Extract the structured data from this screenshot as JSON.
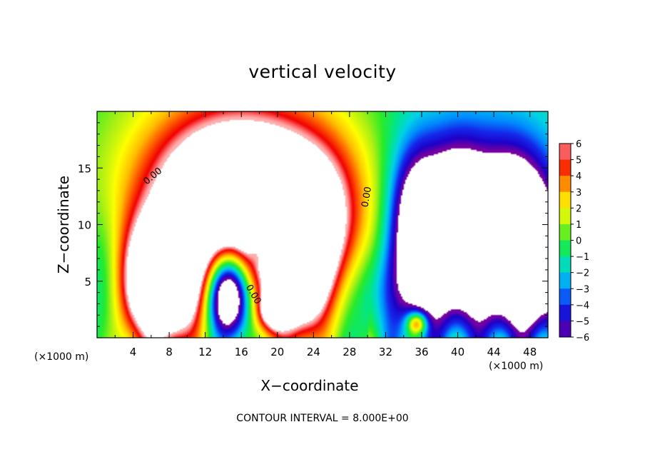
{
  "chart_data": {
    "type": "heatmap",
    "title": "vertical velocity",
    "xlabel": "X−coordinate",
    "ylabel": "Z−coordinate",
    "x_unit": "(×1000 m)",
    "x_unit_right": "(×1000 m)",
    "xlim": [
      0,
      50
    ],
    "ylim": [
      0,
      20
    ],
    "x_ticks": [
      4,
      8,
      12,
      16,
      20,
      24,
      28,
      32,
      36,
      40,
      44,
      48
    ],
    "y_ticks": [
      5,
      10,
      15
    ],
    "colorbar": {
      "min": -6,
      "max": 6,
      "levels": [
        6,
        5,
        4,
        3,
        2,
        1,
        0,
        -1,
        -2,
        -3,
        -4,
        -5,
        -6
      ],
      "labels": [
        "6",
        "5",
        "4",
        "3",
        "2",
        "1",
        "0",
        "−1",
        "−2",
        "−3",
        "−4",
        "−5",
        "−6"
      ]
    },
    "contour_interval_note": "CONTOUR INTERVAL = 8.000E+00",
    "contour_labels": [
      "0.00",
      "0.00",
      "0.00"
    ],
    "field_features": [
      {
        "kind": "updraft_core",
        "x": 7,
        "z": 4.5,
        "value": 10
      },
      {
        "kind": "updraft_core",
        "x": 17,
        "z": 13.5,
        "value": 11
      },
      {
        "kind": "updraft_core",
        "x": 22.5,
        "z": 5.5,
        "value": 9
      },
      {
        "kind": "updraft_core",
        "x": 19.5,
        "z": 2.5,
        "value": 6
      },
      {
        "kind": "downdraft_core",
        "x": 14.5,
        "z": 3.5,
        "value": -9
      },
      {
        "kind": "downdraft_band",
        "x": 42,
        "z": 8,
        "value": -7
      }
    ]
  }
}
